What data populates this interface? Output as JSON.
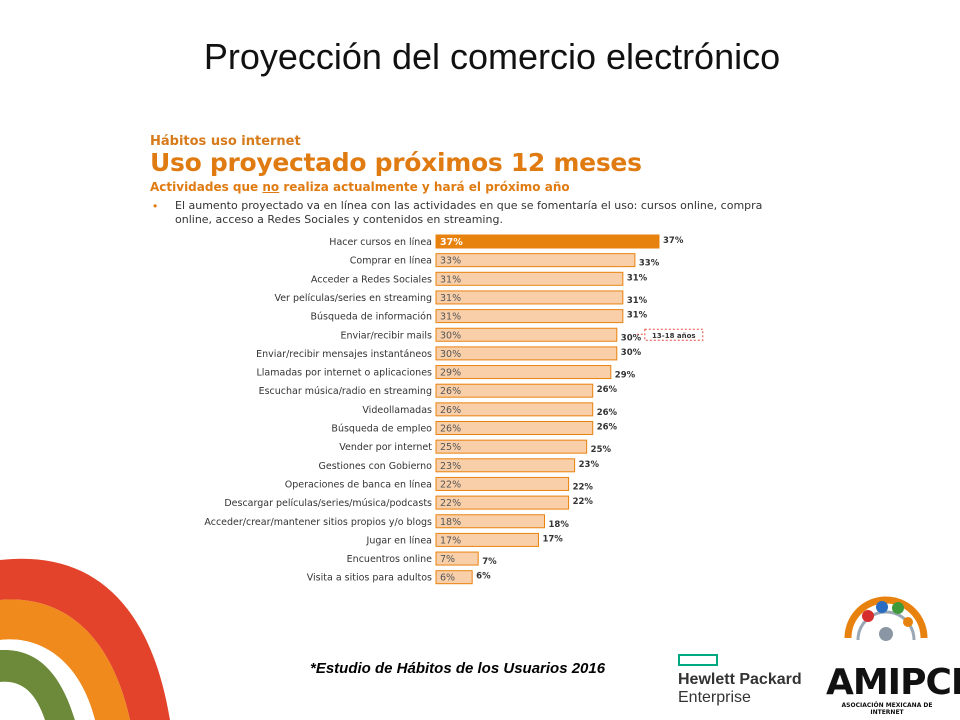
{
  "slide": {
    "title": "Proyección del comercio electrónico",
    "kicker": "Hábitos uso internet",
    "headline": "Uso proyectado próximos 12 meses",
    "subhead_before": "Actividades que ",
    "subhead_underlined": "no",
    "subhead_after": " realiza actualmente y hará el próximo año",
    "bullet_mark": "•",
    "bullet_text": "El aumento proyectado va en línea con las actividades en que se fomentaría el uso: cursos online, compra online, acceso a Redes Sociales y contenidos en streaming.",
    "footnote": "*Estudio de Hábitos de los Usuarios 2016"
  },
  "logos": {
    "hpe_line1": "Hewlett Packard",
    "hpe_line2": "Enterprise",
    "amipci_word": "AMIPCI",
    "amipci_sub": "ASOCIACIÓN MEXICANA DE INTERNET"
  },
  "colors": {
    "accent_orange": "#e8820e",
    "bar_fill": "#f9cfa9",
    "bar_stroke": "#e8820e",
    "deco_red": "#e3432b",
    "deco_orange": "#f08a1d",
    "deco_green": "#6c8a3a",
    "hpe_green": "#01a982"
  },
  "chart_data": {
    "type": "bar",
    "orientation": "horizontal",
    "categories": [
      "Hacer cursos en línea",
      "Comprar en línea",
      "Acceder a Redes Sociales",
      "Ver películas/series en streaming",
      "Búsqueda de información",
      "Enviar/recibir mails",
      "Enviar/recibir mensajes instantáneos",
      "Llamadas por internet o aplicaciones",
      "Escuchar música/radio en streaming",
      "Videollamadas",
      "Búsqueda de empleo",
      "Vender por internet",
      "Gestiones con Gobierno",
      "Operaciones de banca en línea",
      "Descargar películas/series/música/podcasts",
      "Acceder/crear/mantener sitios propios y/o blogs",
      "Jugar en línea",
      "Encuentros online",
      "Visita a sitios para adultos"
    ],
    "values": [
      37,
      33,
      31,
      31,
      31,
      30,
      30,
      29,
      26,
      26,
      26,
      25,
      23,
      22,
      22,
      18,
      17,
      7,
      6
    ],
    "value_labels": [
      "37%",
      "33%",
      "31%",
      "31%",
      "31%",
      "30%",
      "30%",
      "29%",
      "26%",
      "26%",
      "26%",
      "25%",
      "23%",
      "22%",
      "22%",
      "18%",
      "17%",
      "7%",
      "6%"
    ],
    "highlight_index": 0,
    "annotation": {
      "index": 5,
      "text": "13-18 años"
    },
    "xlim": [
      0,
      37
    ],
    "grid": false,
    "legend": "none"
  }
}
